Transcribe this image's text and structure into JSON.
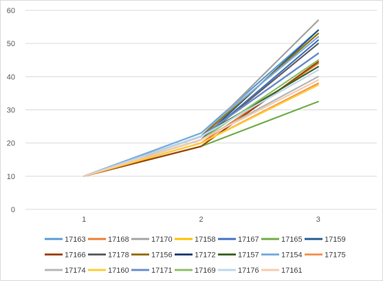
{
  "chart_data": {
    "type": "line",
    "title": "",
    "xlabel": "",
    "ylabel": "",
    "categories": [
      "1",
      "2",
      "3"
    ],
    "ylim": [
      0,
      60
    ],
    "yticks": [
      0,
      10,
      20,
      30,
      40,
      50,
      60
    ],
    "grid": true,
    "legend": "bottom",
    "series": [
      {
        "name": "17163",
        "color": "#5b9bd5",
        "values": [
          10,
          23,
          54
        ]
      },
      {
        "name": "17168",
        "color": "#ed7d31",
        "values": [
          10,
          20,
          44
        ]
      },
      {
        "name": "17170",
        "color": "#a5a5a5",
        "values": [
          10,
          22,
          57
        ]
      },
      {
        "name": "17158",
        "color": "#ffc000",
        "values": [
          10,
          22,
          53
        ]
      },
      {
        "name": "17167",
        "color": "#4472c4",
        "values": [
          10,
          21,
          51
        ]
      },
      {
        "name": "17165",
        "color": "#70ad47",
        "values": [
          10,
          19,
          32.5
        ]
      },
      {
        "name": "17159",
        "color": "#255e91",
        "values": [
          10,
          21,
          54
        ]
      },
      {
        "name": "17166",
        "color": "#9e480e",
        "values": [
          10,
          19,
          44.5
        ]
      },
      {
        "name": "17178",
        "color": "#636363",
        "values": [
          10,
          21,
          50
        ]
      },
      {
        "name": "17156",
        "color": "#997300",
        "values": [
          10,
          22,
          53
        ]
      },
      {
        "name": "17172",
        "color": "#264478",
        "values": [
          10,
          22,
          47
        ]
      },
      {
        "name": "17157",
        "color": "#43682b",
        "values": [
          10,
          22,
          43
        ]
      },
      {
        "name": "17154",
        "color": "#7cafdd",
        "values": [
          10,
          23,
          52
        ]
      },
      {
        "name": "17175",
        "color": "#f1975a",
        "values": [
          10,
          20,
          38
        ]
      },
      {
        "name": "17174",
        "color": "#b7b7b7",
        "values": [
          10,
          21,
          40
        ]
      },
      {
        "name": "17160",
        "color": "#ffcd33",
        "values": [
          10,
          20,
          37.5
        ]
      },
      {
        "name": "17171",
        "color": "#698ed0",
        "values": [
          10,
          22,
          47
        ]
      },
      {
        "name": "17169",
        "color": "#8cc168",
        "values": [
          10,
          21,
          45
        ]
      },
      {
        "name": "17176",
        "color": "#bdd7ee",
        "values": [
          10,
          22,
          42
        ]
      },
      {
        "name": "17161",
        "color": "#f8cbad",
        "values": [
          10,
          21,
          39
        ]
      }
    ]
  }
}
